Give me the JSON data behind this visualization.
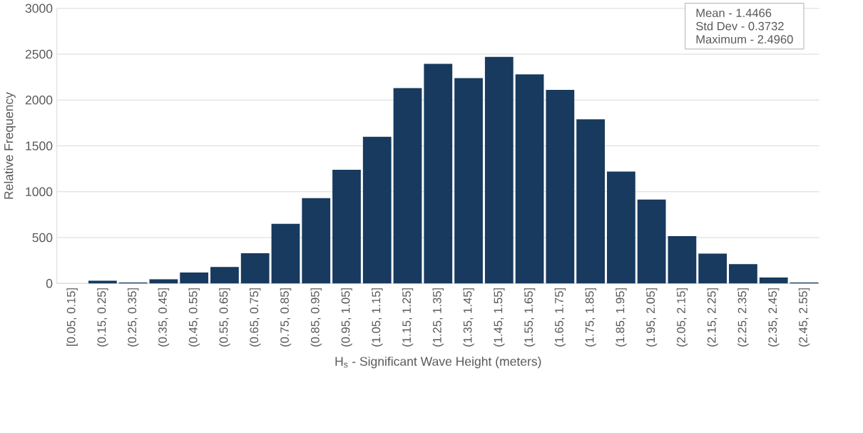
{
  "chart_data": {
    "type": "bar",
    "xlabel": "H$_{s}$ - Significant Wave Height (meters)",
    "ylabel": "Relative Frequency",
    "categories": [
      "[0.05, 0.15]",
      "(0.15, 0.25]",
      "(0.25, 0.35]",
      "(0.35, 0.45]",
      "(0.45, 0.55]",
      "(0.55, 0.65]",
      "(0.65, 0.75]",
      "(0.75, 0.85]",
      "(0.85, 0.95]",
      "(0.95, 1.05]",
      "(1.05, 1.15]",
      "(1.15, 1.25]",
      "(1.25, 1.35]",
      "(1.35, 1.45]",
      "(1.45, 1.55]",
      "(1.55, 1.65]",
      "(1.65, 1.75]",
      "(1.75, 1.85]",
      "(1.85, 1.95]",
      "(1.95, 2.05]",
      "(2.05, 2.15]",
      "(2.15, 2.25]",
      "(2.25, 2.35]",
      "(2.35, 2.45]",
      "(2.45, 2.55]"
    ],
    "values": [
      null,
      30,
      10,
      45,
      120,
      180,
      330,
      650,
      930,
      1240,
      1600,
      2130,
      2395,
      2240,
      2470,
      2280,
      2110,
      1790,
      1220,
      915,
      515,
      325,
      210,
      65,
      10
    ],
    "color": "#173a5e",
    "ylim": [
      0,
      3000
    ],
    "yticks": [
      0,
      500,
      1000,
      1500,
      2000,
      2500,
      3000
    ],
    "grid": "y",
    "annotations": [
      "Mean - 1.4466",
      "Std Dev - 0.3732",
      "Maximum - 2.4960"
    ]
  }
}
